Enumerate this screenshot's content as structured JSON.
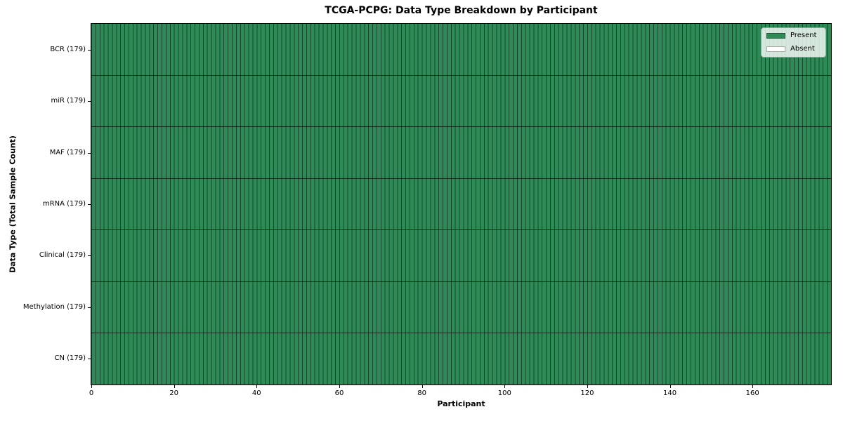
{
  "figure": {
    "title": "TCGA-PCPG: Data Type Breakdown by Participant",
    "xlabel": "Participant",
    "ylabel": "Data Type (Total Sample Count)"
  },
  "legend": {
    "items": [
      {
        "label": "Present",
        "color": "#2e8b57"
      },
      {
        "label": "Absent",
        "color": "#ffffff"
      }
    ]
  },
  "chart_data": {
    "type": "heatmap",
    "title": "TCGA-PCPG: Data Type Breakdown by Participant",
    "xlabel": "Participant",
    "ylabel": "Data Type (Total Sample Count)",
    "legend_position": "upper right",
    "n_participants": 179,
    "xlim": [
      0,
      179
    ],
    "x_ticks": [
      0,
      20,
      40,
      60,
      80,
      100,
      120,
      140,
      160
    ],
    "value_legend": {
      "1": "Present",
      "0": "Absent"
    },
    "all_cells_present": true,
    "rows": [
      {
        "label": "BCR (179)",
        "data_type": "BCR",
        "total_samples": 179,
        "present_count": 179,
        "absent_count": 0,
        "value_for_all_participants": 1
      },
      {
        "label": "miR (179)",
        "data_type": "miR",
        "total_samples": 179,
        "present_count": 179,
        "absent_count": 0,
        "value_for_all_participants": 1
      },
      {
        "label": "MAF (179)",
        "data_type": "MAF",
        "total_samples": 179,
        "present_count": 179,
        "absent_count": 0,
        "value_for_all_participants": 1
      },
      {
        "label": "mRNA (179)",
        "data_type": "mRNA",
        "total_samples": 179,
        "present_count": 179,
        "absent_count": 0,
        "value_for_all_participants": 1
      },
      {
        "label": "Clinical (179)",
        "data_type": "Clinical",
        "total_samples": 179,
        "present_count": 179,
        "absent_count": 0,
        "value_for_all_participants": 1
      },
      {
        "label": "Methylation (179)",
        "data_type": "Methylation",
        "total_samples": 179,
        "present_count": 179,
        "absent_count": 0,
        "value_for_all_participants": 1
      },
      {
        "label": "CN (179)",
        "data_type": "CN",
        "total_samples": 179,
        "present_count": 179,
        "absent_count": 0,
        "value_for_all_participants": 1
      }
    ],
    "colors": {
      "present": "#2e8b57",
      "absent": "#ffffff",
      "cell_edge": "rgba(0,0,0,0.5)",
      "row_divider": "rgba(0,0,0,0.65)",
      "spine": "#000000"
    },
    "grid": false
  }
}
